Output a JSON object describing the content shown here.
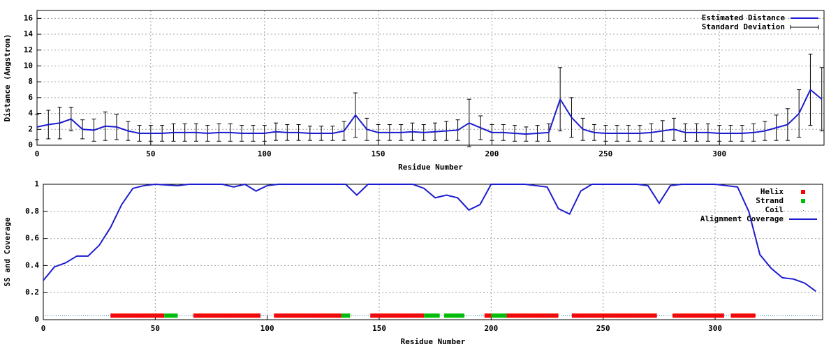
{
  "chart_data": [
    {
      "type": "line",
      "xlabel": "Residue Number",
      "ylabel": "Distance (Angstrom)",
      "xlim": [
        0,
        346
      ],
      "ylim": [
        0,
        17
      ],
      "xticks": [
        0,
        50,
        100,
        150,
        200,
        250,
        300
      ],
      "yticks": [
        0,
        2,
        4,
        6,
        8,
        10,
        12,
        14,
        16
      ],
      "grid": true,
      "legend": "top-right",
      "x": [
        0,
        5,
        10,
        15,
        20,
        25,
        30,
        35,
        40,
        45,
        50,
        55,
        60,
        65,
        70,
        75,
        80,
        85,
        90,
        95,
        100,
        105,
        110,
        115,
        120,
        125,
        130,
        135,
        140,
        145,
        150,
        155,
        160,
        165,
        170,
        175,
        180,
        185,
        190,
        195,
        200,
        205,
        210,
        215,
        220,
        225,
        230,
        235,
        240,
        245,
        250,
        255,
        260,
        265,
        270,
        275,
        280,
        285,
        290,
        295,
        300,
        305,
        310,
        315,
        320,
        325,
        330,
        335,
        340,
        345
      ],
      "series": [
        {
          "name": "Estimated Distance",
          "color": "#1c1cd0",
          "error_name": "Standard Deviation",
          "error_color": "#000000",
          "values": [
            2.3,
            2.6,
            2.8,
            3.3,
            2.0,
            1.9,
            2.4,
            2.3,
            1.8,
            1.5,
            1.5,
            1.5,
            1.6,
            1.6,
            1.6,
            1.5,
            1.6,
            1.6,
            1.5,
            1.5,
            1.5,
            1.7,
            1.6,
            1.6,
            1.5,
            1.5,
            1.5,
            1.8,
            3.8,
            2.0,
            1.6,
            1.6,
            1.6,
            1.7,
            1.6,
            1.7,
            1.8,
            1.9,
            2.8,
            2.2,
            1.6,
            1.6,
            1.5,
            1.4,
            1.5,
            1.6,
            5.8,
            3.5,
            2.0,
            1.6,
            1.5,
            1.5,
            1.5,
            1.5,
            1.6,
            1.8,
            2.0,
            1.6,
            1.6,
            1.6,
            1.5,
            1.5,
            1.5,
            1.6,
            1.8,
            2.2,
            2.6,
            4.0,
            7.0,
            5.8
          ],
          "errors": [
            1.6,
            1.8,
            2.0,
            1.5,
            1.2,
            1.4,
            1.8,
            1.6,
            1.2,
            1.0,
            1.0,
            1.0,
            1.1,
            1.1,
            1.1,
            1.0,
            1.1,
            1.1,
            1.0,
            1.0,
            1.0,
            1.1,
            1.0,
            1.0,
            0.9,
            0.9,
            0.9,
            1.2,
            2.8,
            1.4,
            1.0,
            1.0,
            1.0,
            1.1,
            1.0,
            1.1,
            1.2,
            1.3,
            3.0,
            1.5,
            1.0,
            1.0,
            1.0,
            0.9,
            1.0,
            1.1,
            4.0,
            2.5,
            1.4,
            1.0,
            1.0,
            1.0,
            1.0,
            1.0,
            1.1,
            1.3,
            1.4,
            1.1,
            1.1,
            1.1,
            1.0,
            1.0,
            1.0,
            1.1,
            1.2,
            1.6,
            2.0,
            3.0,
            4.5,
            4.0
          ]
        }
      ]
    },
    {
      "type": "line",
      "xlabel": "Residue Number",
      "ylabel": "SS and Coverage",
      "xlim": [
        0,
        348
      ],
      "ylim": [
        0,
        1
      ],
      "xticks": [
        0,
        50,
        100,
        150,
        200,
        250,
        300
      ],
      "yticks": [
        0,
        0.2,
        0.4,
        0.6,
        0.8,
        1
      ],
      "grid": true,
      "legend": "top-right",
      "x": [
        0,
        5,
        10,
        15,
        20,
        25,
        30,
        35,
        40,
        45,
        50,
        55,
        60,
        65,
        70,
        75,
        80,
        85,
        90,
        95,
        100,
        105,
        110,
        115,
        120,
        125,
        130,
        135,
        140,
        145,
        150,
        155,
        160,
        165,
        170,
        175,
        180,
        185,
        190,
        195,
        200,
        205,
        210,
        215,
        220,
        225,
        230,
        235,
        240,
        245,
        250,
        255,
        260,
        265,
        270,
        275,
        280,
        285,
        290,
        295,
        300,
        305,
        310,
        315,
        320,
        325,
        330,
        335,
        340,
        345
      ],
      "series": [
        {
          "name": "Helix",
          "color": "#ff0000",
          "style": "ranges",
          "level": 0.03,
          "ranges": [
            [
              30,
              54
            ],
            [
              67,
              97
            ],
            [
              103,
              133
            ],
            [
              146,
              170
            ],
            [
              197,
              200
            ],
            [
              206,
              230
            ],
            [
              236,
              274
            ],
            [
              281,
              304
            ],
            [
              307,
              318
            ]
          ]
        },
        {
          "name": "Strand",
          "color": "#00c000",
          "style": "ranges",
          "level": 0.03,
          "ranges": [
            [
              54,
              60
            ],
            [
              133,
              137
            ],
            [
              170,
              177
            ],
            [
              179,
              188
            ],
            [
              200,
              207
            ]
          ]
        },
        {
          "name": "Coil",
          "color": "#1080a0",
          "style": "dots",
          "level": 0.03,
          "ranges": [
            [
              0,
              348
            ]
          ]
        },
        {
          "name": "Alignment Coverage",
          "color": "#1c1cd0",
          "style": "line",
          "values": [
            0.29,
            0.39,
            0.42,
            0.47,
            0.47,
            0.55,
            0.68,
            0.85,
            0.97,
            0.99,
            1.0,
            0.995,
            0.99,
            1.0,
            1.0,
            1.0,
            1.0,
            0.98,
            1.0,
            0.95,
            0.99,
            1.0,
            1.0,
            1.0,
            1.0,
            1.0,
            1.0,
            1.0,
            0.92,
            1.0,
            1.0,
            1.0,
            1.0,
            1.0,
            0.97,
            0.9,
            0.92,
            0.9,
            0.81,
            0.85,
            1.0,
            1.0,
            1.0,
            1.0,
            0.99,
            0.98,
            0.82,
            0.78,
            0.95,
            1.0,
            1.0,
            1.0,
            1.0,
            1.0,
            0.99,
            0.86,
            0.99,
            1.0,
            1.0,
            1.0,
            1.0,
            0.99,
            0.98,
            0.8,
            0.48,
            0.38,
            0.31,
            0.3,
            0.27,
            0.21
          ]
        }
      ]
    }
  ]
}
